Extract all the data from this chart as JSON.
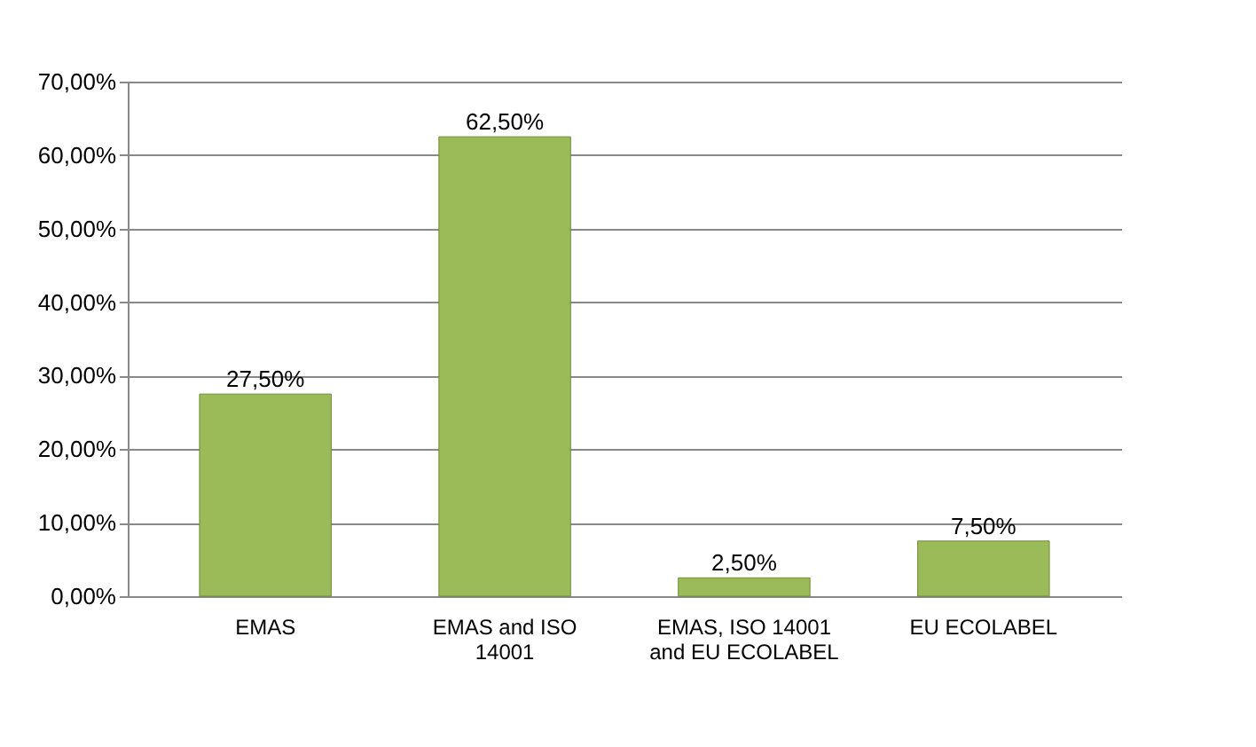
{
  "chart_data": {
    "type": "bar",
    "categories": [
      "EMAS",
      "EMAS and ISO 14001",
      "EMAS, ISO 14001 and EU ECOLABEL",
      "EU ECOLABEL"
    ],
    "values": [
      27.5,
      62.5,
      2.5,
      7.5
    ],
    "value_labels": [
      "27,50%",
      "62,50%",
      "2,50%",
      "7,50%"
    ],
    "color": "#9bbb59",
    "ylim": [
      0,
      70
    ],
    "yticks": [
      {
        "value": 0,
        "label": "0,00%"
      },
      {
        "value": 10,
        "label": "10,00%"
      },
      {
        "value": 20,
        "label": "20,00%"
      },
      {
        "value": 30,
        "label": "30,00%"
      },
      {
        "value": 40,
        "label": "40,00%"
      },
      {
        "value": 50,
        "label": "50,00%"
      },
      {
        "value": 60,
        "label": "60,00%"
      },
      {
        "value": 70,
        "label": "70,00%"
      }
    ],
    "grid": "y"
  }
}
